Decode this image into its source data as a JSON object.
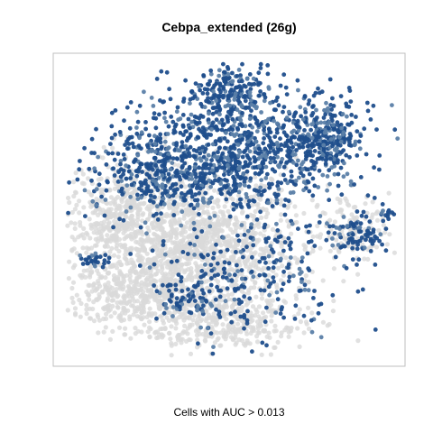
{
  "chart_data": {
    "type": "scatter",
    "title": "Cebpa_extended (26g)",
    "caption": "Cells with AUC > 0.013",
    "xlabel": "",
    "ylabel": "",
    "xlim": [
      0,
      100
    ],
    "ylim": [
      0,
      100
    ],
    "axes_visible": false,
    "grid": false,
    "legend": "none",
    "colors": {
      "low": "#d9d9d9",
      "high": "#1f4e8c",
      "mid": "#5b7fa8",
      "frame": "#bfbfbf"
    },
    "series": [
      {
        "role": "cells-below-threshold",
        "clusters": [
          {
            "cx": 40,
            "cy": 60,
            "sx": 16,
            "sy": 11,
            "n": 1400
          },
          {
            "cx": 26,
            "cy": 77,
            "sx": 12,
            "sy": 5,
            "n": 400
          },
          {
            "cx": 47,
            "cy": 87,
            "sx": 12,
            "sy": 4,
            "n": 300
          },
          {
            "cx": 20,
            "cy": 52,
            "sx": 8,
            "sy": 9,
            "n": 350
          },
          {
            "cx": 86,
            "cy": 56,
            "sx": 6,
            "sy": 5,
            "n": 120
          }
        ]
      },
      {
        "role": "cells-above-threshold",
        "clusters": [
          {
            "cx": 55,
            "cy": 30,
            "sx": 15,
            "sy": 10,
            "n": 900
          },
          {
            "cx": 30,
            "cy": 38,
            "sx": 10,
            "sy": 8,
            "n": 350
          },
          {
            "cx": 50,
            "cy": 12,
            "sx": 5,
            "sy": 3.5,
            "n": 140
          },
          {
            "cx": 78,
            "cy": 27,
            "sx": 4.5,
            "sy": 5,
            "n": 220
          },
          {
            "cx": 86,
            "cy": 58,
            "sx": 4.5,
            "sy": 3.5,
            "n": 90
          },
          {
            "cx": 12,
            "cy": 66,
            "sx": 1.6,
            "sy": 1.2,
            "n": 30
          },
          {
            "cx": 38,
            "cy": 78,
            "sx": 4,
            "sy": 3,
            "n": 70
          },
          {
            "cx": 55,
            "cy": 70,
            "sx": 14,
            "sy": 12,
            "n": 260
          },
          {
            "cx": 95,
            "cy": 51,
            "sx": 1.2,
            "sy": 1,
            "n": 12
          }
        ]
      }
    ]
  }
}
